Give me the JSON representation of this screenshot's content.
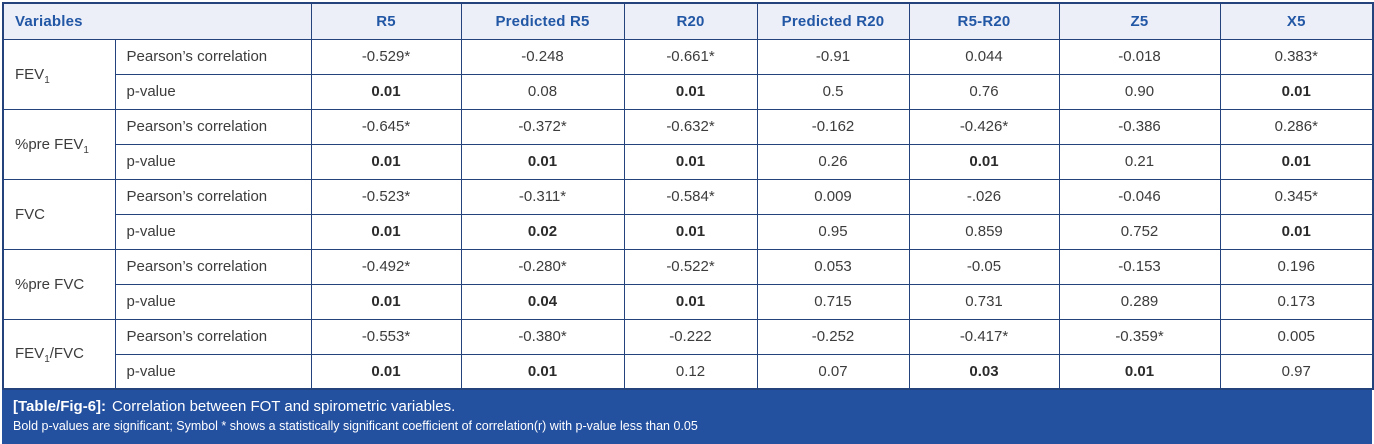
{
  "colors": {
    "border": "#24427c",
    "header_bg": "#edeff8",
    "header_text": "#2257a5",
    "body_text": "#3c3c3c",
    "caption_bg": "#2450a0",
    "caption_text": "#ffffff"
  },
  "table": {
    "headers": [
      "Variables",
      "R5",
      "Predicted R5",
      "R20",
      "Predicted R20",
      "R5-R20",
      "Z5",
      "X5"
    ],
    "stat_labels": [
      "Pearson’s correlation",
      "p-value"
    ],
    "groups": [
      {
        "variable": {
          "prefix": "FEV",
          "sub": "1",
          "suffix": ""
        },
        "pearson": [
          "-0.529*",
          "-0.248",
          "-0.661*",
          "-0.91",
          "0.044",
          "-0.018",
          "0.383*"
        ],
        "pvalues": [
          "0.01",
          "0.08",
          "0.01",
          "0.5",
          "0.76",
          "0.90",
          "0.01"
        ],
        "pvalue_bold": [
          true,
          false,
          true,
          false,
          false,
          false,
          true
        ]
      },
      {
        "variable": {
          "prefix": "%pre FEV",
          "sub": "1",
          "suffix": ""
        },
        "pearson": [
          "-0.645*",
          "-0.372*",
          "-0.632*",
          "-0.162",
          "-0.426*",
          "-0.386",
          "0.286*"
        ],
        "pvalues": [
          "0.01",
          "0.01",
          "0.01",
          "0.26",
          "0.01",
          "0.21",
          "0.01"
        ],
        "pvalue_bold": [
          true,
          true,
          true,
          false,
          true,
          false,
          true
        ]
      },
      {
        "variable": {
          "prefix": "FVC",
          "sub": "",
          "suffix": ""
        },
        "pearson": [
          "-0.523*",
          "-0.311*",
          "-0.584*",
          "0.009",
          "-.026",
          "-0.046",
          "0.345*"
        ],
        "pvalues": [
          "0.01",
          "0.02",
          "0.01",
          "0.95",
          "0.859",
          "0.752",
          "0.01"
        ],
        "pvalue_bold": [
          true,
          true,
          true,
          false,
          false,
          false,
          true
        ]
      },
      {
        "variable": {
          "prefix": "%pre FVC",
          "sub": "",
          "suffix": ""
        },
        "pearson": [
          "-0.492*",
          "-0.280*",
          "-0.522*",
          "0.053",
          "-0.05",
          "-0.153",
          "0.196"
        ],
        "pvalues": [
          "0.01",
          "0.04",
          "0.01",
          "0.715",
          "0.731",
          "0.289",
          "0.173"
        ],
        "pvalue_bold": [
          true,
          true,
          true,
          false,
          false,
          false,
          false
        ]
      },
      {
        "variable": {
          "prefix": "FEV",
          "sub": "1",
          "suffix": "/FVC"
        },
        "pearson": [
          "-0.553*",
          "-0.380*",
          "-0.222",
          "-0.252",
          "-0.417*",
          "-0.359*",
          "0.005"
        ],
        "pvalues": [
          "0.01",
          "0.01",
          "0.12",
          "0.07",
          "0.03",
          "0.01",
          "0.97"
        ],
        "pvalue_bold": [
          true,
          true,
          false,
          false,
          true,
          true,
          false
        ]
      }
    ]
  },
  "caption": {
    "label": "[Table/Fig-6]:",
    "title": "Correlation between FOT and spirometric variables.",
    "note": "Bold p-values are significant; Symbol * shows a statistically significant coefficient of correlation(r) with p-value less than 0.05"
  }
}
